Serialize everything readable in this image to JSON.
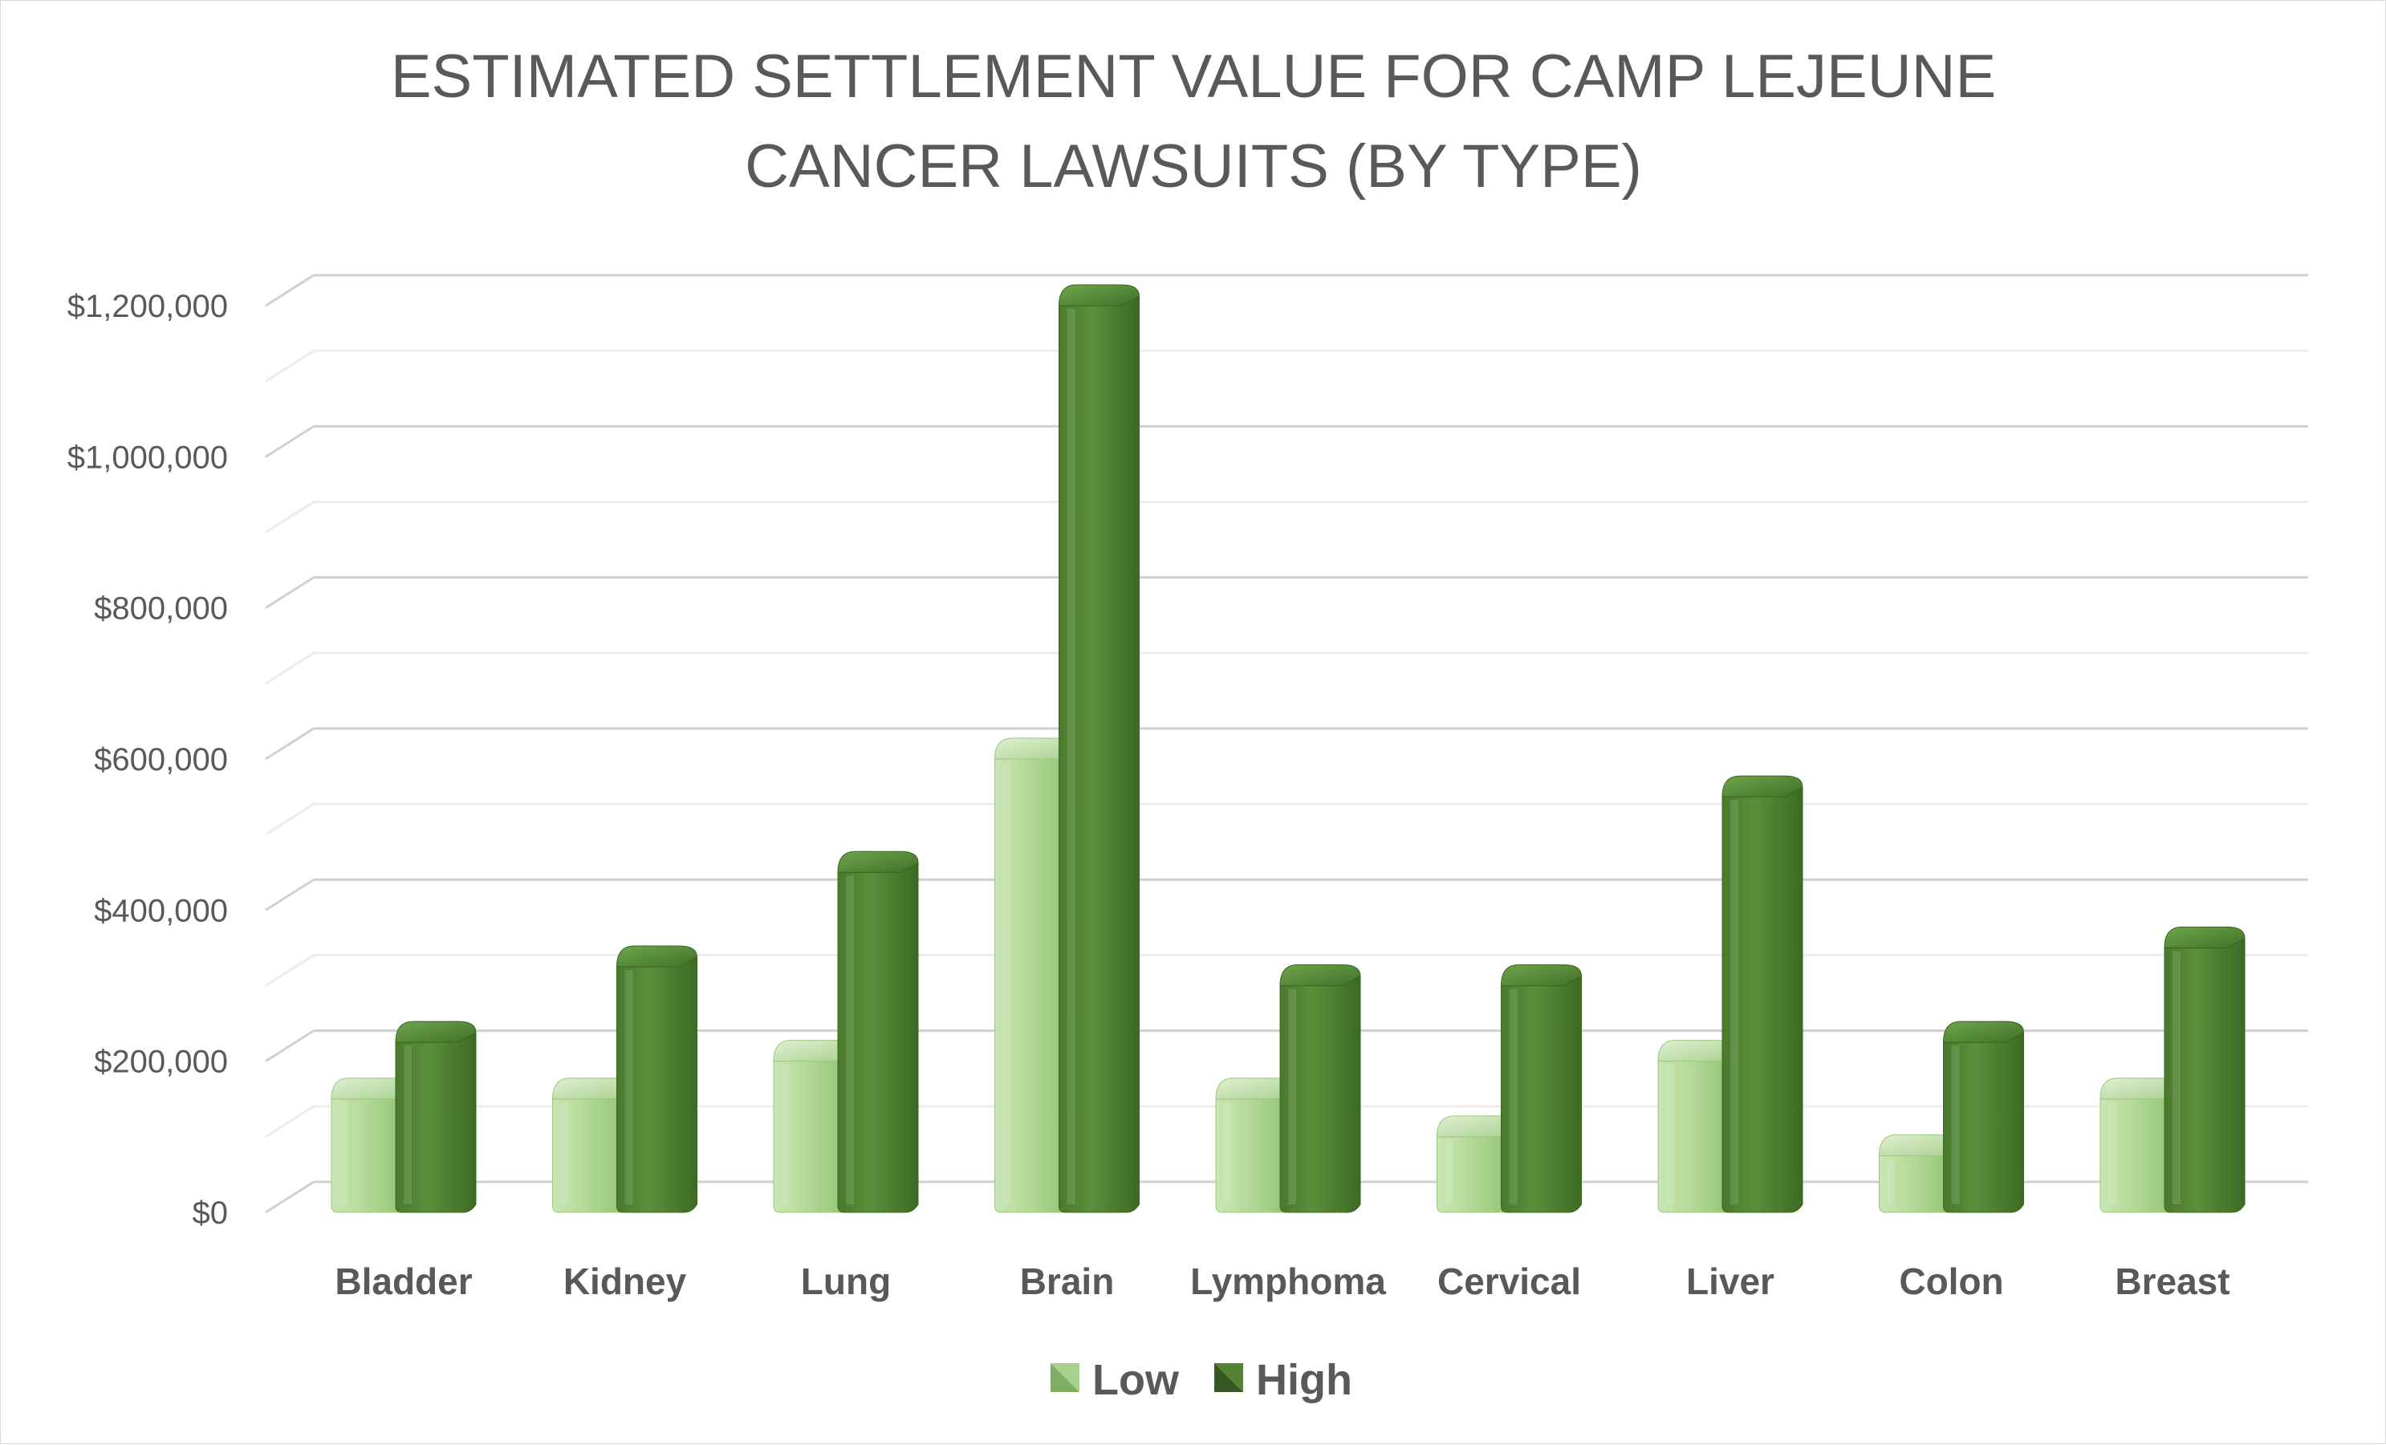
{
  "chart_data": {
    "type": "bar",
    "title": "ESTIMATED SETTLEMENT VALUE FOR CAMP LEJEUNE CANCER LAWSUITS (BY TYPE)",
    "title_lines": [
      "ESTIMATED SETTLEMENT VALUE FOR CAMP LEJEUNE",
      "CANCER LAWSUITS (BY TYPE)"
    ],
    "xlabel": "",
    "ylabel": "",
    "categories": [
      "Bladder",
      "Kidney",
      "Lung",
      "Brain",
      "Lymphoma",
      "Cervical",
      "Liver",
      "Colon",
      "Breast"
    ],
    "series": [
      {
        "name": "Low",
        "values": [
          150000,
          150000,
          200000,
          600000,
          150000,
          100000,
          200000,
          75000,
          150000
        ],
        "color": "#a9d18e"
      },
      {
        "name": "High",
        "values": [
          225000,
          325000,
          450000,
          1200000,
          300000,
          300000,
          550000,
          225000,
          350000
        ],
        "color": "#548235"
      }
    ],
    "ylim": [
      0,
      1200000
    ],
    "yticks": [
      {
        "value": 0,
        "label": "$0"
      },
      {
        "value": 200000,
        "label": "$200,000"
      },
      {
        "value": 400000,
        "label": "$400,000"
      },
      {
        "value": 600000,
        "label": "$600,000"
      },
      {
        "value": 800000,
        "label": "$800,000"
      },
      {
        "value": 1000000,
        "label": "$1,000,000"
      },
      {
        "value": 1200000,
        "label": "$1,200,000"
      }
    ],
    "grid": true,
    "legend_position": "bottom",
    "style": "3d-cylinder"
  }
}
